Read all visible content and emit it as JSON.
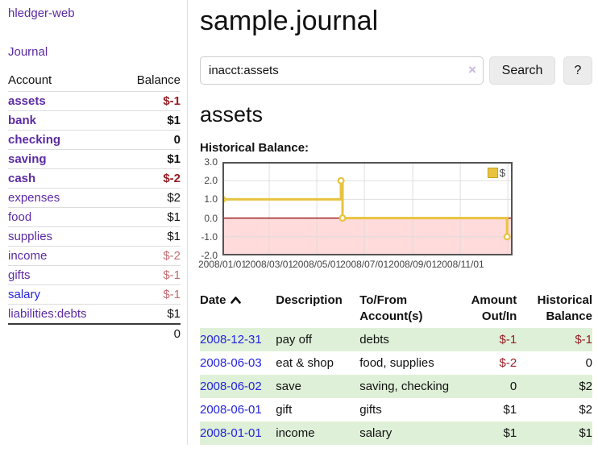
{
  "brand": "hledger-web",
  "nav": {
    "journal": "Journal"
  },
  "sidebar": {
    "header": {
      "account": "Account",
      "balance": "Balance"
    },
    "accounts": [
      {
        "name": "assets",
        "balance": "$-1"
      },
      {
        "name": "bank",
        "balance": "$1"
      },
      {
        "name": "checking",
        "balance": "0"
      },
      {
        "name": "saving",
        "balance": "$1"
      },
      {
        "name": "cash",
        "balance": "$-2"
      },
      {
        "name": "expenses",
        "balance": "$2"
      },
      {
        "name": "food",
        "balance": "$1"
      },
      {
        "name": "supplies",
        "balance": "$1"
      },
      {
        "name": "income",
        "balance": "$-2"
      },
      {
        "name": "gifts",
        "balance": "$-1"
      },
      {
        "name": "salary",
        "balance": "$-1"
      },
      {
        "name": "liabilities:debts",
        "balance": "$1"
      }
    ],
    "total": "0"
  },
  "header": {
    "title": "sample.journal"
  },
  "search": {
    "value": "inacct:assets",
    "clear_icon": "×",
    "search_button": "Search",
    "help_button": "?"
  },
  "account_page": {
    "heading": "assets",
    "chart_label": "Historical Balance:"
  },
  "chart_data": {
    "type": "line",
    "title": "Historical Balance:",
    "step": "after",
    "x_domain": [
      "2008-01-01",
      "2009-01-07"
    ],
    "x_ticks": [
      {
        "date": "2008-01-01",
        "label": "2008/01/01"
      },
      {
        "date": "2008-03-01",
        "label": "2008/03/01"
      },
      {
        "date": "2008-05-01",
        "label": "2008/05/01"
      },
      {
        "date": "2008-07-01",
        "label": "2008/07/01"
      },
      {
        "date": "2008-09-01",
        "label": "2008/09/01"
      },
      {
        "date": "2008-11-01",
        "label": "2008/11/01"
      },
      {
        "date": "2009-01-01",
        "label": ""
      }
    ],
    "y_ticks": [
      "3.0",
      "2.0",
      "1.0",
      "0.0",
      "-1.0",
      "-2.0"
    ],
    "ylim": [
      -2,
      3
    ],
    "series": [
      {
        "name": "$",
        "color": "#e8c33f",
        "points": [
          [
            "2008-01-01",
            1
          ],
          [
            "2008-06-01",
            2
          ],
          [
            "2008-06-03",
            0
          ],
          [
            "2008-12-31",
            -1
          ]
        ]
      }
    ],
    "legend": {
      "label": "$",
      "position": "top-right"
    },
    "grid": true,
    "zero_line_color": "#8b0000",
    "negative_region_color": "#ffdbdb",
    "border_color": "#545454",
    "gridline_color": "#dcdcdc"
  },
  "register": {
    "headers": {
      "date": "Date",
      "description": "Description",
      "tofrom": "To/From Account(s)",
      "amount": "Amount Out/In",
      "balance": "Historical Balance"
    },
    "rows": [
      {
        "date": "2008-12-31",
        "description": "pay off",
        "accounts": "debts",
        "amount": "$-1",
        "balance": "$-1"
      },
      {
        "date": "2008-06-03",
        "description": "eat & shop",
        "accounts": "food, supplies",
        "amount": "$-2",
        "balance": "0"
      },
      {
        "date": "2008-06-02",
        "description": "save",
        "accounts": "saving, checking",
        "amount": "0",
        "balance": "$2"
      },
      {
        "date": "2008-06-01",
        "description": "gift",
        "accounts": "gifts",
        "amount": "$1",
        "balance": "$2"
      },
      {
        "date": "2008-01-01",
        "description": "income",
        "accounts": "salary",
        "amount": "$1",
        "balance": "$1"
      }
    ]
  }
}
